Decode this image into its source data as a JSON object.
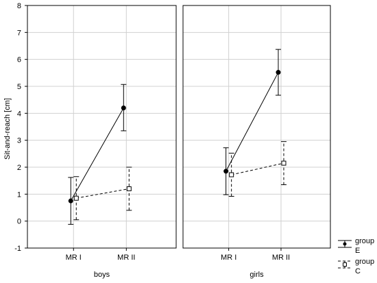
{
  "chart_data": {
    "type": "line",
    "ylabel": "Sit-and-reach [cm]",
    "ylim": [
      -1,
      8
    ],
    "yticks": [
      -1,
      0,
      1,
      2,
      3,
      4,
      5,
      6,
      7,
      8
    ],
    "grid": true,
    "categories": [
      "MR I",
      "MR II"
    ],
    "panels": [
      {
        "title": "boys",
        "series": [
          {
            "name": "group E",
            "legend_label_line1": "group",
            "legend_label_line2": "E",
            "marker": "filled-circle",
            "line": "solid",
            "values": [
              0.75,
              4.2
            ],
            "error_low": [
              -0.12,
              3.35
            ],
            "error_high": [
              1.62,
              5.07
            ]
          },
          {
            "name": "group C",
            "legend_label_line1": "group",
            "legend_label_line2": "C",
            "marker": "open-square",
            "line": "dashed",
            "values": [
              0.85,
              1.2
            ],
            "error_low": [
              0.05,
              0.4
            ],
            "error_high": [
              1.65,
              2.0
            ]
          }
        ]
      },
      {
        "title": "girls",
        "series": [
          {
            "name": "group E",
            "legend_label_line1": "group",
            "legend_label_line2": "E",
            "marker": "filled-circle",
            "line": "solid",
            "values": [
              1.85,
              5.52
            ],
            "error_low": [
              0.98,
              4.67
            ],
            "error_high": [
              2.72,
              6.37
            ]
          },
          {
            "name": "group C",
            "legend_label_line1": "group",
            "legend_label_line2": "C",
            "marker": "open-square",
            "line": "dashed",
            "values": [
              1.72,
              2.15
            ],
            "error_low": [
              0.92,
              1.35
            ],
            "error_high": [
              2.52,
              2.95
            ]
          }
        ]
      }
    ],
    "legend_position": "bottom-right"
  }
}
